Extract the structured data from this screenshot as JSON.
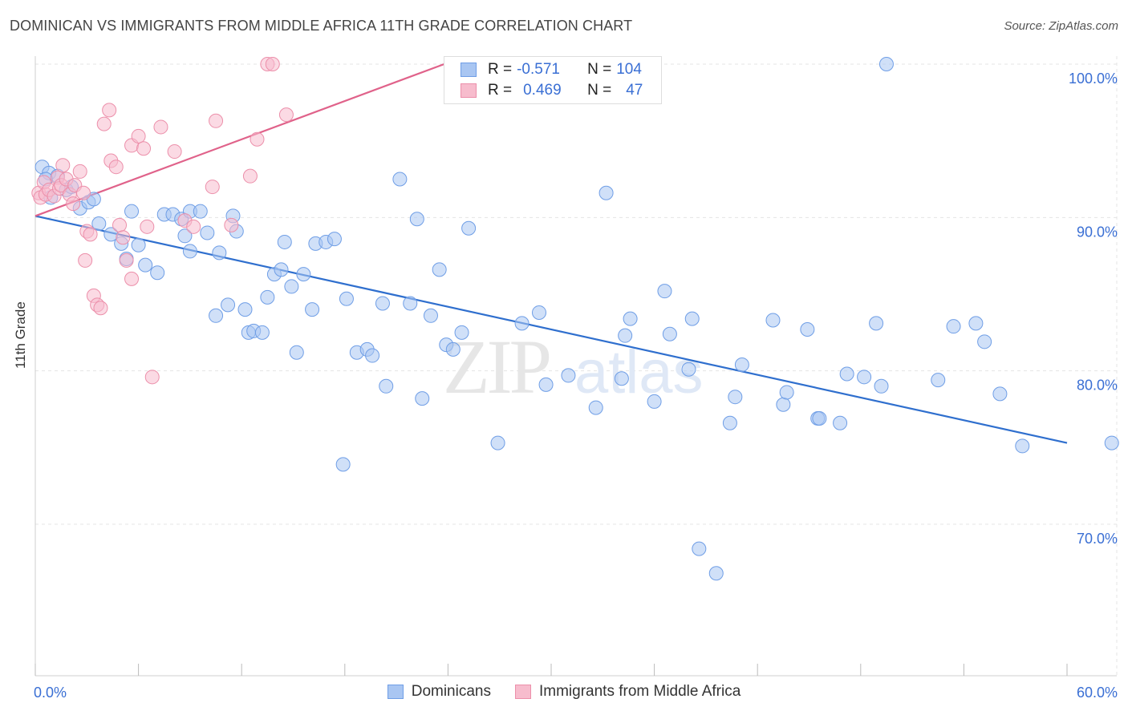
{
  "header": {
    "title": "DOMINICAN VS IMMIGRANTS FROM MIDDLE AFRICA 11TH GRADE CORRELATION CHART",
    "source": "Source: ZipAtlas.com"
  },
  "watermark": {
    "zip": "ZIP",
    "atlas": "atlas"
  },
  "legend_stats": [
    {
      "r_label": "R =",
      "r_value": "-0.571",
      "n_label": "N =",
      "n_value": "104",
      "color": "#a9c6f2",
      "border": "#6f9ee6"
    },
    {
      "r_label": "R =",
      "r_value": "0.469",
      "n_label": "N =",
      "n_value": "47",
      "color": "#f7bccd",
      "border": "#ec8faa"
    }
  ],
  "chart_data": {
    "type": "scatter",
    "ylabel": "11th Grade",
    "xlim": [
      0,
      60
    ],
    "ylim": [
      60,
      103
    ],
    "x_tick_labels": [
      "0.0%",
      "60.0%"
    ],
    "y_ticks": [
      70,
      80,
      90,
      100
    ],
    "y_tick_labels": [
      "70.0%",
      "80.0%",
      "90.0%",
      "100.0%"
    ],
    "grid": true,
    "legend_position": "bottom-center",
    "series": [
      {
        "name": "Dominicans",
        "color": "#6f9ee6",
        "fill": "#a9c6f2",
        "trend": {
          "x": [
            0,
            60
          ],
          "y": [
            90.1,
            75.3
          ],
          "color": "#2f6fce"
        },
        "points": [
          [
            0.4,
            93.3
          ],
          [
            0.8,
            92.9
          ],
          [
            1.3,
            92.7
          ],
          [
            1.8,
            91.8
          ],
          [
            2.1,
            92.0
          ],
          [
            2.6,
            90.6
          ],
          [
            3.1,
            91.0
          ],
          [
            3.4,
            91.2
          ],
          [
            3.7,
            89.6
          ],
          [
            4.4,
            88.9
          ],
          [
            5.0,
            88.3
          ],
          [
            5.3,
            87.3
          ],
          [
            5.6,
            90.4
          ],
          [
            6.0,
            88.2
          ],
          [
            6.4,
            86.9
          ],
          [
            7.1,
            86.4
          ],
          [
            7.5,
            90.2
          ],
          [
            8.0,
            90.2
          ],
          [
            8.5,
            89.9
          ],
          [
            8.7,
            88.8
          ],
          [
            9.0,
            90.4
          ],
          [
            9.0,
            87.8
          ],
          [
            9.6,
            90.4
          ],
          [
            10.0,
            89.0
          ],
          [
            10.7,
            87.7
          ],
          [
            10.5,
            83.6
          ],
          [
            11.2,
            84.3
          ],
          [
            11.5,
            90.1
          ],
          [
            11.7,
            89.1
          ],
          [
            12.2,
            84.0
          ],
          [
            12.4,
            82.5
          ],
          [
            12.7,
            82.6
          ],
          [
            13.2,
            82.5
          ],
          [
            13.5,
            84.8
          ],
          [
            13.9,
            86.3
          ],
          [
            14.3,
            86.6
          ],
          [
            14.5,
            88.4
          ],
          [
            14.9,
            85.5
          ],
          [
            15.2,
            81.2
          ],
          [
            15.6,
            86.3
          ],
          [
            16.1,
            84.0
          ],
          [
            16.3,
            88.3
          ],
          [
            16.9,
            88.4
          ],
          [
            17.4,
            88.6
          ],
          [
            17.9,
            73.9
          ],
          [
            18.1,
            84.7
          ],
          [
            18.7,
            81.2
          ],
          [
            19.3,
            81.4
          ],
          [
            19.6,
            81.0
          ],
          [
            20.2,
            84.4
          ],
          [
            20.4,
            79.0
          ],
          [
            21.2,
            92.5
          ],
          [
            21.8,
            84.4
          ],
          [
            22.2,
            89.9
          ],
          [
            22.5,
            78.2
          ],
          [
            23.0,
            83.6
          ],
          [
            23.5,
            86.6
          ],
          [
            23.9,
            81.7
          ],
          [
            24.3,
            81.4
          ],
          [
            24.8,
            82.5
          ],
          [
            25.2,
            89.3
          ],
          [
            25.1,
            100.0
          ],
          [
            26.4,
            100.0
          ],
          [
            26.9,
            75.3
          ],
          [
            28.3,
            83.1
          ],
          [
            29.3,
            83.8
          ],
          [
            29.7,
            79.1
          ],
          [
            31.0,
            79.7
          ],
          [
            32.6,
            77.6
          ],
          [
            33.2,
            91.6
          ],
          [
            34.1,
            79.5
          ],
          [
            34.3,
            82.3
          ],
          [
            34.6,
            83.4
          ],
          [
            36.0,
            78.0
          ],
          [
            36.6,
            85.2
          ],
          [
            36.9,
            82.4
          ],
          [
            38.0,
            80.1
          ],
          [
            38.2,
            83.4
          ],
          [
            38.6,
            68.4
          ],
          [
            39.6,
            66.8
          ],
          [
            40.4,
            76.6
          ],
          [
            40.7,
            78.3
          ],
          [
            41.1,
            80.4
          ],
          [
            42.9,
            83.3
          ],
          [
            43.5,
            77.8
          ],
          [
            43.7,
            78.6
          ],
          [
            44.9,
            82.7
          ],
          [
            45.5,
            76.9
          ],
          [
            45.6,
            76.9
          ],
          [
            46.8,
            76.6
          ],
          [
            47.2,
            79.8
          ],
          [
            48.2,
            79.6
          ],
          [
            48.9,
            83.1
          ],
          [
            49.2,
            79.0
          ],
          [
            49.5,
            100.0
          ],
          [
            52.5,
            79.4
          ],
          [
            53.4,
            82.9
          ],
          [
            54.7,
            83.1
          ],
          [
            55.2,
            81.9
          ],
          [
            56.1,
            78.5
          ],
          [
            57.4,
            75.1
          ],
          [
            62.6,
            75.3
          ],
          [
            0.6,
            92.5
          ],
          [
            0.9,
            91.3
          ]
        ]
      },
      {
        "name": "Immigrants from Middle Africa",
        "color": "#ec8faa",
        "fill": "#f7bccd",
        "trend": {
          "x": [
            0,
            24.5
          ],
          "y": [
            90.1,
            100.3
          ],
          "color": "#e0628a"
        },
        "points": [
          [
            0.2,
            91.6
          ],
          [
            0.3,
            91.3
          ],
          [
            0.5,
            92.3
          ],
          [
            0.6,
            91.5
          ],
          [
            0.8,
            91.8
          ],
          [
            1.1,
            91.4
          ],
          [
            1.3,
            92.6
          ],
          [
            1.4,
            91.9
          ],
          [
            1.5,
            92.1
          ],
          [
            1.6,
            93.4
          ],
          [
            1.8,
            92.5
          ],
          [
            2.0,
            91.5
          ],
          [
            2.3,
            92.1
          ],
          [
            2.6,
            93.0
          ],
          [
            2.8,
            91.6
          ],
          [
            3.0,
            89.1
          ],
          [
            3.2,
            88.9
          ],
          [
            3.4,
            84.9
          ],
          [
            3.6,
            84.3
          ],
          [
            3.8,
            84.1
          ],
          [
            4.0,
            96.1
          ],
          [
            4.3,
            97.0
          ],
          [
            4.4,
            93.7
          ],
          [
            4.7,
            93.3
          ],
          [
            4.9,
            89.5
          ],
          [
            5.1,
            88.7
          ],
          [
            5.3,
            87.2
          ],
          [
            5.6,
            86.0
          ],
          [
            5.6,
            94.7
          ],
          [
            6.0,
            95.3
          ],
          [
            6.3,
            94.5
          ],
          [
            6.5,
            89.4
          ],
          [
            6.8,
            79.6
          ],
          [
            7.3,
            95.9
          ],
          [
            8.1,
            94.3
          ],
          [
            8.7,
            89.8
          ],
          [
            9.2,
            89.4
          ],
          [
            10.3,
            92.0
          ],
          [
            10.5,
            96.3
          ],
          [
            11.4,
            89.5
          ],
          [
            12.5,
            92.7
          ],
          [
            12.9,
            95.1
          ],
          [
            13.5,
            100.0
          ],
          [
            13.8,
            100.0
          ],
          [
            14.6,
            96.7
          ],
          [
            2.9,
            87.2
          ],
          [
            2.2,
            90.9
          ]
        ]
      }
    ]
  }
}
